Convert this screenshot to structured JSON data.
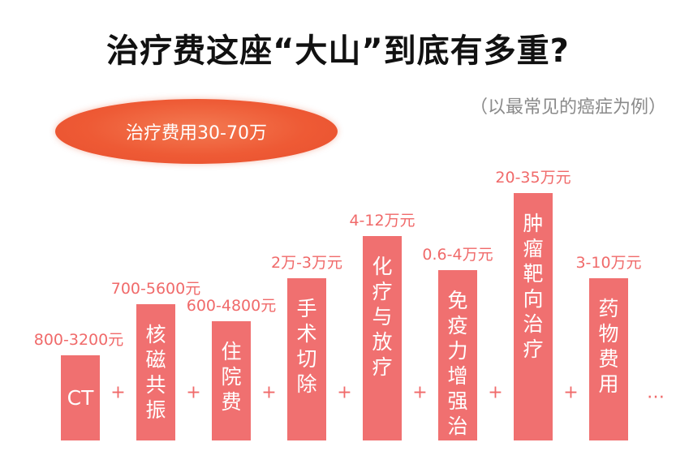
{
  "title": "治疗费这座“大山”到底有多重?",
  "subtitle": "（以最常见的癌症为例）",
  "total_label": "治疗费用30-70万",
  "plus_symbol": "+",
  "ellipsis": "…",
  "colors": {
    "bar": "#f07070",
    "accent": "#ee5a35",
    "label": "#f06a6a"
  },
  "chart_data": {
    "type": "bar",
    "title": "治疗费这座“大山”到底有多重?",
    "categories": [
      "CT",
      "核磁共振",
      "住院费",
      "手术切除",
      "化疗与放疗",
      "免疫力增强治疗",
      "肿瘤靶向治疗",
      "药物费用"
    ],
    "value_labels": [
      "800-3200元",
      "700-5600元",
      "600-4800元",
      "2万-3万元",
      "4-12万元",
      "0.6-4万元",
      "20-35万元",
      "3-10万元"
    ],
    "values": [
      10,
      16,
      14,
      19,
      24,
      20,
      29,
      19
    ]
  }
}
